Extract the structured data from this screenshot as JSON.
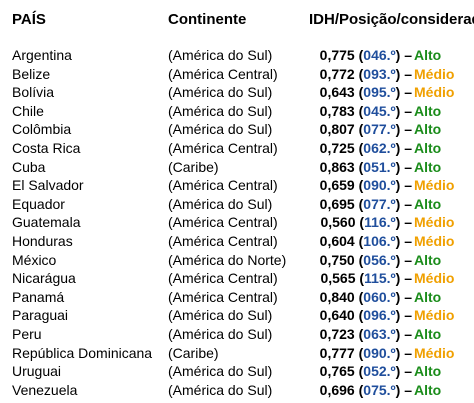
{
  "headers": {
    "country": "PAÍS",
    "continent": "Continente",
    "idh": "IDH/Posição/considerado:"
  },
  "colors": {
    "position": "#1f4e9c",
    "alto": "#1a8c1a",
    "medio": "#f0a000"
  },
  "rows": [
    {
      "country": "Argentina",
      "continent": "(América do Sul)",
      "value": "0,775",
      "position": "046.º",
      "level": "Alto"
    },
    {
      "country": "Belize",
      "continent": "(América Central)",
      "value": "0,772",
      "position": "093.º",
      "level": "Médio"
    },
    {
      "country": "Bolívia",
      "continent": "(América do Sul)",
      "value": "0,643",
      "position": "095.º",
      "level": "Médio"
    },
    {
      "country": "Chile",
      "continent": "(América do Sul)",
      "value": "0,783",
      "position": "045.º",
      "level": "Alto"
    },
    {
      "country": "Colômbia",
      "continent": "(América do Sul)",
      "value": "0,807",
      "position": "077.º",
      "level": "Alto"
    },
    {
      "country": "Costa Rica",
      "continent": "(América Central)",
      "value": "0,725",
      "position": "062.º",
      "level": "Alto"
    },
    {
      "country": "Cuba",
      "continent": "(Caribe)",
      "value": "0,863",
      "position": "051.º",
      "level": "Alto"
    },
    {
      "country": "El Salvador",
      "continent": "(América Central)",
      "value": "0,659",
      "position": "090.º",
      "level": "Médio"
    },
    {
      "country": "Equador",
      "continent": "(América do Sul)",
      "value": "0,695",
      "position": "077.º",
      "level": "Alto"
    },
    {
      "country": "Guatemala",
      "continent": "(América Central)",
      "value": "0,560",
      "position": "116.º",
      "level": "Médio"
    },
    {
      "country": "Honduras",
      "continent": "(América Central)",
      "value": "0,604",
      "position": "106.º",
      "level": "Médio"
    },
    {
      "country": "México",
      "continent": "(América do Norte)",
      "value": "0,750",
      "position": "056.º",
      "level": "Alto"
    },
    {
      "country": "Nicarágua",
      "continent": "(América Central)",
      "value": "0,565",
      "position": "115.º",
      "level": "Médio"
    },
    {
      "country": "Panamá",
      "continent": "(América Central)",
      "value": "0,840",
      "position": "060.º",
      "level": "Alto"
    },
    {
      "country": "Paraguai",
      "continent": "(América do Sul)",
      "value": "0,640",
      "position": "096.º",
      "level": "Médio"
    },
    {
      "country": "Peru",
      "continent": "(América do Sul)",
      "value": "0,723",
      "position": "063.º",
      "level": "Alto"
    },
    {
      "country": "República Dominicana",
      "continent": "(Caribe)",
      "value": "0,777",
      "position": "090.º",
      "level": "Médio"
    },
    {
      "country": "Uruguai",
      "continent": "(América do Sul)",
      "value": "0,765",
      "position": "052.º",
      "level": "Alto"
    },
    {
      "country": "Venezuela",
      "continent": "(América do Sul)",
      "value": "0,696",
      "position": "075.º",
      "level": "Alto"
    }
  ]
}
